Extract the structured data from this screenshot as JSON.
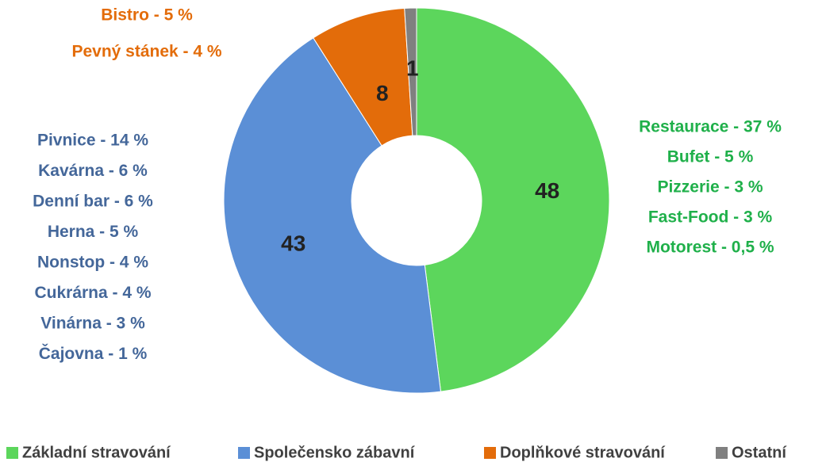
{
  "chart_data": {
    "type": "pie",
    "categories": [
      "Základní stravování",
      "Společensko zábavní",
      "Doplňkové stravování",
      "Ostatní"
    ],
    "values": [
      48,
      43,
      8,
      1
    ],
    "colors": [
      "#5cd65c",
      "#5b8fd6",
      "#e36c0a",
      "#808080"
    ],
    "legend": "bottom",
    "annotations": [
      {
        "color": "#e36c0a",
        "texts": [
          "Bistro - 5 %",
          "Pevný stánek - 4 %"
        ]
      },
      {
        "color": "#44679a",
        "texts": [
          "Pivnice - 14 %",
          "Kavárna - 6 %",
          "Denní bar - 6 %",
          "Herna - 5 %",
          "Nonstop - 4 %",
          "Cukrárna - 4 %",
          "Vinárna - 3 %",
          "Čajovna - 1 %"
        ]
      },
      {
        "color": "#1fb04a",
        "texts": [
          "Restaurace - 37 %",
          "Bufet - 5 %",
          "Pizzerie - 3 %",
          "Fast-Food - 3 %",
          "Motorest - 0,5 %"
        ]
      }
    ]
  }
}
